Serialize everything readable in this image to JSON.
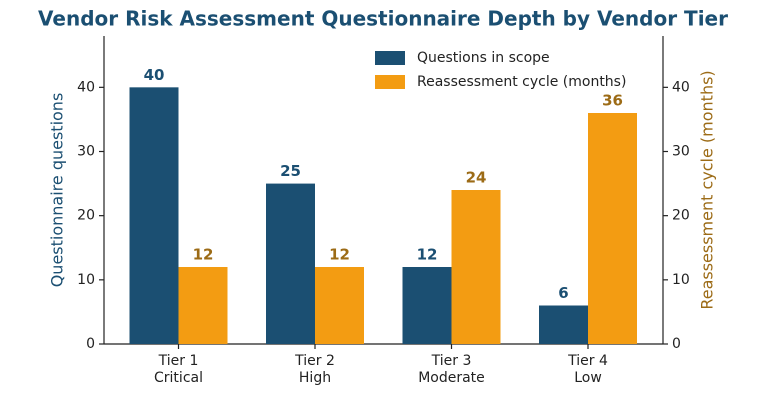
{
  "chart_data": {
    "type": "bar",
    "title": "Vendor Risk Assessment Questionnaire Depth by Vendor Tier",
    "categories": [
      "Tier 1\nCritical",
      "Tier 2\nHigh",
      "Tier 3\nModerate",
      "Tier 4\nLow"
    ],
    "ylabel": "Questionnaire questions",
    "y2label": "Reassessment cycle (months)",
    "series": [
      {
        "name": "Questions in scope",
        "color": "#1b4f72",
        "label_color": "#1b4f72",
        "values": [
          40,
          25,
          12,
          6
        ]
      },
      {
        "name": "Reassessment cycle (months)",
        "color": "#f39c12",
        "label_color": "#9c6b16",
        "axis": "y2",
        "values": [
          12,
          12,
          24,
          36
        ]
      }
    ],
    "ylim": [
      0,
      48
    ],
    "yticks": [
      0,
      10,
      20,
      30,
      40
    ],
    "y2lim": [
      0,
      48
    ],
    "y2ticks": [
      0,
      10,
      20,
      30,
      40
    ],
    "grid": false,
    "legend": "upper right"
  }
}
